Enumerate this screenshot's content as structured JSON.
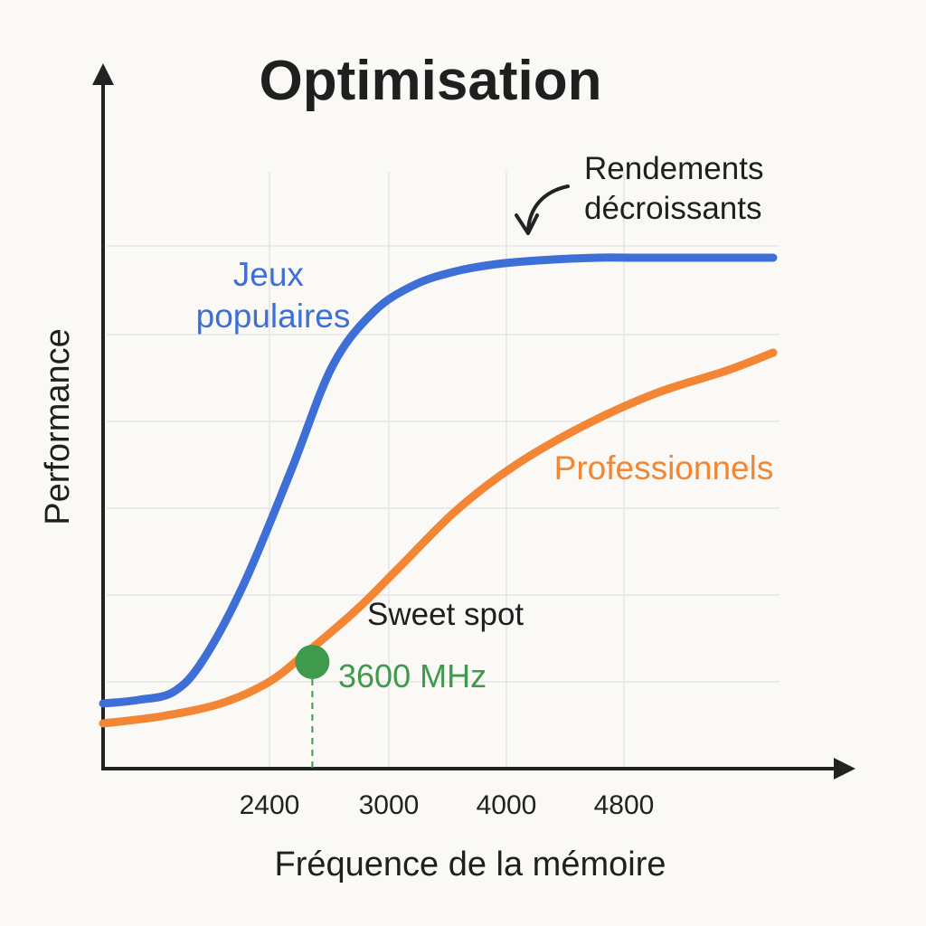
{
  "chart_data": {
    "type": "line",
    "title": "Optimisation",
    "xlabel": "Fréquence de la mémoire",
    "ylabel": "Performance",
    "x_ticks": [
      "2400",
      "3000",
      "4000",
      "4800"
    ],
    "grid": true,
    "legend": "inline",
    "series": [
      {
        "name": "Jeux populaires",
        "color": "#3d6fd6",
        "points": [
          [
            0,
            7.2
          ],
          [
            0.3,
            7.6
          ],
          [
            0.6,
            8.5
          ],
          [
            0.85,
            12
          ],
          [
            1.2,
            20.5
          ],
          [
            1.6,
            33
          ],
          [
            1.95,
            44.5
          ],
          [
            2.3,
            50.5
          ],
          [
            2.65,
            53.5
          ],
          [
            3,
            55
          ],
          [
            3.35,
            55.8
          ],
          [
            3.7,
            56.2
          ],
          [
            4.2,
            56.5
          ],
          [
            4.6,
            56.5
          ],
          [
            5.7,
            56.5
          ]
        ]
      },
      {
        "name": "Professionnels",
        "color": "#f28634",
        "points": [
          [
            0,
            5
          ],
          [
            0.5,
            5.8
          ],
          [
            1.0,
            7.2
          ],
          [
            1.4,
            9.5
          ],
          [
            1.7,
            12.5
          ],
          [
            2.15,
            17.5
          ],
          [
            2.5,
            22
          ],
          [
            3.0,
            28.5
          ],
          [
            3.5,
            33.5
          ],
          [
            4.1,
            38
          ],
          [
            4.7,
            41.5
          ],
          [
            5.3,
            44
          ],
          [
            5.7,
            46
          ]
        ]
      }
    ],
    "annotations": {
      "diminishing_returns": [
        "Rendements",
        "décroissants"
      ],
      "sweet_spot": {
        "label": "Sweet spot",
        "value": "3600 MHz",
        "color": "#3f9a4d",
        "x": 1.78,
        "y": 11.8
      }
    }
  }
}
